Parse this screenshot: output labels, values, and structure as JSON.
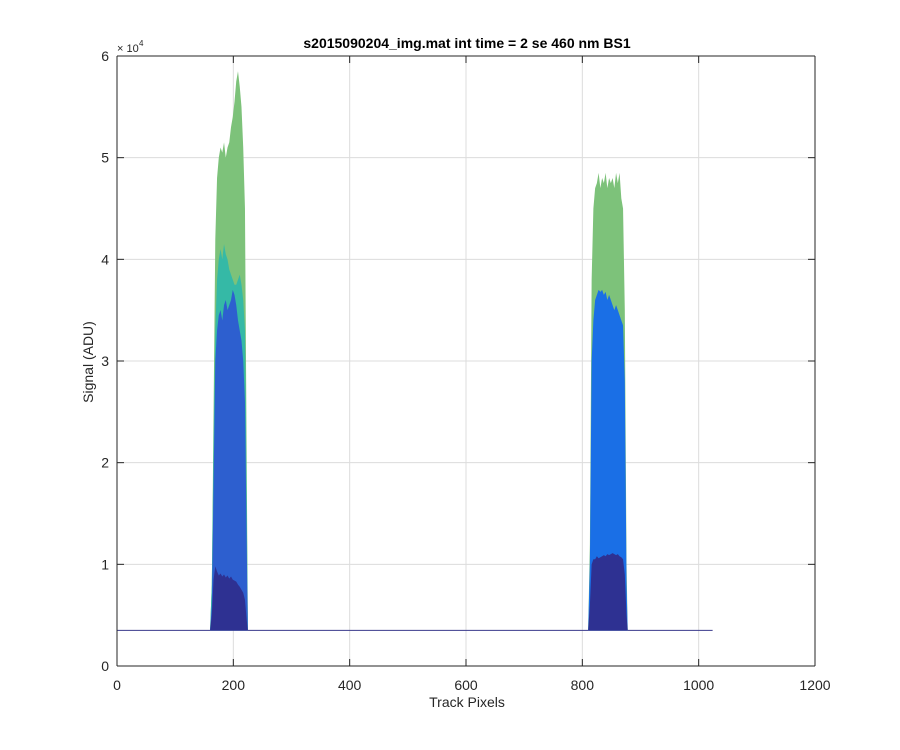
{
  "chart_data": {
    "type": "area",
    "title": "s2015090204_img.mat int time = 2 se  460 nm BS1",
    "xlabel": "Track Pixels",
    "ylabel": "Signal (ADU)",
    "xlim": [
      0,
      1200
    ],
    "ylim": [
      0,
      60000
    ],
    "x_ticks": [
      0,
      200,
      400,
      600,
      800,
      1000,
      1200
    ],
    "y_ticks": [
      0,
      10000,
      20000,
      30000,
      40000,
      50000,
      60000
    ],
    "y_tick_labels": [
      "0",
      "1",
      "2",
      "3",
      "4",
      "5",
      "6"
    ],
    "y_exponent_label": "× 10",
    "y_exponent_power": "4",
    "grid": true,
    "baseline": 3500,
    "baseline_x_range": [
      0,
      1024
    ],
    "colors": {
      "background": "#ffffff",
      "axis": "#262626",
      "grid": "#dcdcdc",
      "baseline": "#3a3a8c"
    },
    "peaks": [
      {
        "x_range": [
          160,
          225
        ],
        "layers": [
          {
            "color": "#7dc27a",
            "top": [
              [
                160,
                3500
              ],
              [
                163,
                8000
              ],
              [
                166,
                25000
              ],
              [
                169,
                42000
              ],
              [
                172,
                48000
              ],
              [
                175,
                50000
              ],
              [
                178,
                51000
              ],
              [
                181,
                50500
              ],
              [
                184,
                51500
              ],
              [
                187,
                50000
              ],
              [
                190,
                51000
              ],
              [
                193,
                51500
              ],
              [
                196,
                53000
              ],
              [
                199,
                54000
              ],
              [
                202,
                55500
              ],
              [
                205,
                57500
              ],
              [
                208,
                58500
              ],
              [
                211,
                57000
              ],
              [
                214,
                55000
              ],
              [
                217,
                51000
              ],
              [
                220,
                45000
              ],
              [
                223,
                20000
              ],
              [
                225,
                3500
              ]
            ]
          },
          {
            "color": "#35b9a6",
            "top": [
              [
                160,
                3500
              ],
              [
                163,
                8000
              ],
              [
                166,
                22000
              ],
              [
                169,
                33000
              ],
              [
                172,
                38000
              ],
              [
                175,
                40000
              ],
              [
                178,
                41000
              ],
              [
                181,
                40000
              ],
              [
                184,
                41500
              ],
              [
                187,
                40500
              ],
              [
                190,
                40000
              ],
              [
                193,
                39000
              ],
              [
                196,
                38500
              ],
              [
                199,
                38000
              ],
              [
                202,
                37500
              ],
              [
                205,
                37500
              ],
              [
                208,
                38000
              ],
              [
                211,
                38500
              ],
              [
                214,
                37500
              ],
              [
                217,
                36000
              ],
              [
                220,
                33000
              ],
              [
                223,
                16000
              ],
              [
                225,
                3500
              ]
            ]
          },
          {
            "color": "#2d5fcf",
            "top": [
              [
                160,
                3500
              ],
              [
                163,
                6000
              ],
              [
                166,
                18000
              ],
              [
                169,
                30000
              ],
              [
                172,
                33000
              ],
              [
                175,
                34500
              ],
              [
                178,
                35000
              ],
              [
                181,
                34000
              ],
              [
                184,
                35500
              ],
              [
                187,
                36000
              ],
              [
                190,
                35000
              ],
              [
                193,
                35500
              ],
              [
                196,
                36000
              ],
              [
                199,
                37000
              ],
              [
                202,
                36500
              ],
              [
                205,
                35500
              ],
              [
                208,
                34000
              ],
              [
                211,
                33000
              ],
              [
                214,
                32000
              ],
              [
                217,
                30000
              ],
              [
                220,
                26000
              ],
              [
                223,
                12000
              ],
              [
                225,
                3500
              ]
            ]
          },
          {
            "color": "#2e3192",
            "top": [
              [
                160,
                3500
              ],
              [
                163,
                5000
              ],
              [
                166,
                8500
              ],
              [
                169,
                9800
              ],
              [
                172,
                9300
              ],
              [
                175,
                8900
              ],
              [
                178,
                9100
              ],
              [
                181,
                8800
              ],
              [
                184,
                9000
              ],
              [
                187,
                8700
              ],
              [
                190,
                8900
              ],
              [
                193,
                8600
              ],
              [
                196,
                8800
              ],
              [
                199,
                8500
              ],
              [
                202,
                8400
              ],
              [
                205,
                8300
              ],
              [
                208,
                8000
              ],
              [
                211,
                7800
              ],
              [
                214,
                7500
              ],
              [
                217,
                7200
              ],
              [
                220,
                6500
              ],
              [
                223,
                4500
              ],
              [
                225,
                3500
              ]
            ]
          }
        ]
      },
      {
        "x_range": [
          810,
          878
        ],
        "layers": [
          {
            "color": "#7dc27a",
            "top": [
              [
                810,
                3500
              ],
              [
                813,
                12000
              ],
              [
                816,
                38000
              ],
              [
                819,
                45000
              ],
              [
                822,
                47000
              ],
              [
                825,
                47500
              ],
              [
                828,
                48500
              ],
              [
                831,
                47000
              ],
              [
                834,
                48000
              ],
              [
                837,
                47500
              ],
              [
                840,
                48500
              ],
              [
                843,
                47000
              ],
              [
                846,
                48000
              ],
              [
                849,
                47500
              ],
              [
                852,
                48000
              ],
              [
                855,
                47000
              ],
              [
                858,
                48500
              ],
              [
                861,
                47500
              ],
              [
                864,
                48500
              ],
              [
                867,
                46000
              ],
              [
                870,
                45000
              ],
              [
                873,
                35000
              ],
              [
                876,
                10000
              ],
              [
                878,
                3500
              ]
            ]
          },
          {
            "color": "#1a6fe6",
            "top": [
              [
                810,
                3500
              ],
              [
                813,
                10000
              ],
              [
                816,
                30000
              ],
              [
                819,
                34000
              ],
              [
                822,
                36000
              ],
              [
                825,
                36500
              ],
              [
                828,
                37000
              ],
              [
                831,
                36800
              ],
              [
                834,
                37000
              ],
              [
                837,
                36500
              ],
              [
                840,
                36800
              ],
              [
                843,
                36000
              ],
              [
                846,
                36500
              ],
              [
                849,
                36000
              ],
              [
                852,
                35500
              ],
              [
                855,
                35000
              ],
              [
                858,
                35500
              ],
              [
                861,
                35000
              ],
              [
                864,
                34500
              ],
              [
                867,
                34000
              ],
              [
                870,
                33500
              ],
              [
                873,
                28000
              ],
              [
                876,
                8000
              ],
              [
                878,
                3500
              ]
            ]
          },
          {
            "color": "#2e3192",
            "top": [
              [
                810,
                3500
              ],
              [
                813,
                6000
              ],
              [
                816,
                10000
              ],
              [
                819,
                10500
              ],
              [
                822,
                10500
              ],
              [
                825,
                10800
              ],
              [
                828,
                10600
              ],
              [
                831,
                10700
              ],
              [
                834,
                10800
              ],
              [
                837,
                10900
              ],
              [
                840,
                10800
              ],
              [
                843,
                11000
              ],
              [
                846,
                10900
              ],
              [
                849,
                11000
              ],
              [
                852,
                11100
              ],
              [
                855,
                11000
              ],
              [
                858,
                10900
              ],
              [
                861,
                11000
              ],
              [
                864,
                10800
              ],
              [
                867,
                10700
              ],
              [
                870,
                10500
              ],
              [
                873,
                9000
              ],
              [
                876,
                5000
              ],
              [
                878,
                3500
              ]
            ]
          }
        ]
      }
    ]
  }
}
